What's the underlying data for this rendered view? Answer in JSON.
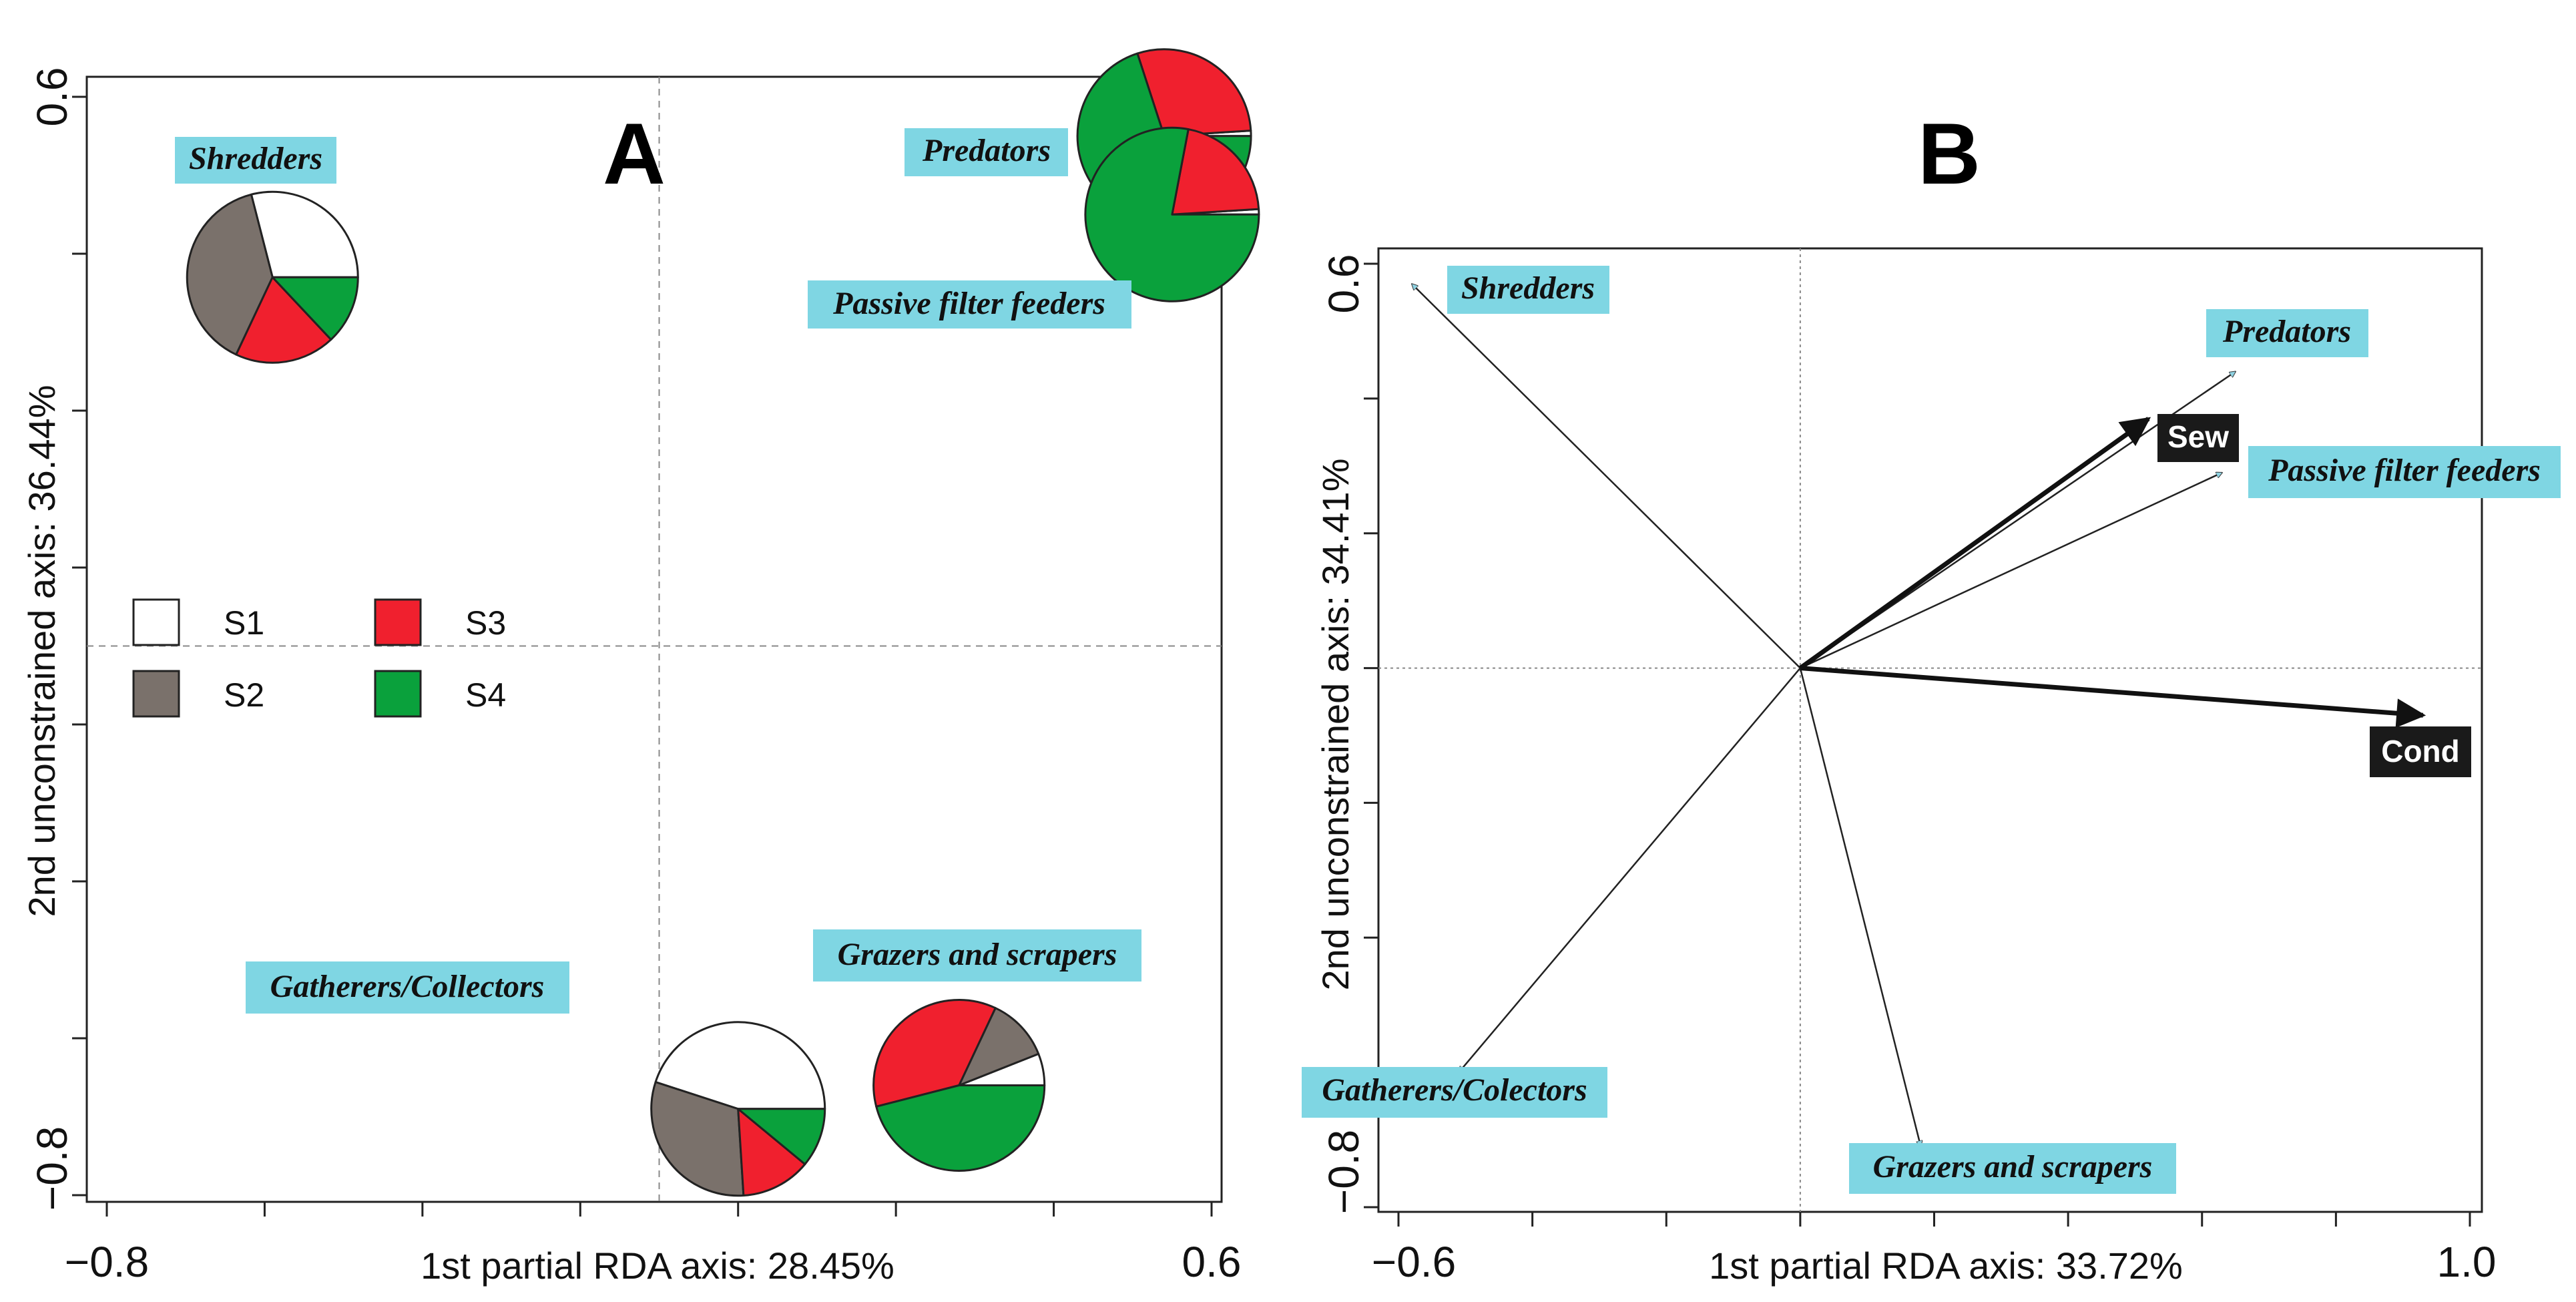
{
  "colors": {
    "S1": "#ffffff",
    "S2": "#7a716b",
    "S3": "#f0202e",
    "S4": "#0aa13c",
    "label_bg": "#7fd6e3",
    "env_bg": "#1a1a1a"
  },
  "chart_data": [
    {
      "panel": "A",
      "type": "scatter",
      "title": "A",
      "xlabel": "1st partial RDA axis: 28.45%",
      "ylabel": "2nd unconstrained axis: 36.44%",
      "xlim": [
        -0.8,
        0.6
      ],
      "ylim": [
        -0.8,
        0.6
      ],
      "x_tick_labels": [
        "−0.8",
        "0.6"
      ],
      "y_tick_labels": [
        "0.6",
        "−0.8"
      ],
      "legend": [
        {
          "key": "S1",
          "label": "S1"
        },
        {
          "key": "S2",
          "label": "S2"
        },
        {
          "key": "S3",
          "label": "S3"
        },
        {
          "key": "S4",
          "label": "S4"
        }
      ],
      "groups": [
        {
          "name": "Shredders",
          "x": -0.59,
          "y": 0.37,
          "shares": {
            "S1": 0.29,
            "S2": 0.39,
            "S3": 0.19,
            "S4": 0.13
          }
        },
        {
          "name": "Predators",
          "x": 0.54,
          "y": 0.55,
          "shares": {
            "S1": 0.01,
            "S2": 0.0,
            "S3": 0.29,
            "S4": 0.7
          }
        },
        {
          "name": "Passive filter feeders",
          "x": 0.55,
          "y": 0.45,
          "shares": {
            "S1": 0.01,
            "S2": 0.0,
            "S3": 0.21,
            "S4": 0.78
          }
        },
        {
          "name": "Gatherers/Collectors",
          "x": 0.0,
          "y": -0.69,
          "shares": {
            "S1": 0.45,
            "S2": 0.31,
            "S3": 0.13,
            "S4": 0.11
          }
        },
        {
          "name": "Grazers and scrapers",
          "x": 0.28,
          "y": -0.66,
          "shares": {
            "S1": 0.06,
            "S2": 0.12,
            "S3": 0.36,
            "S4": 0.46
          }
        }
      ]
    },
    {
      "panel": "B",
      "type": "biplot",
      "title": "B",
      "xlabel": "1st partial RDA axis: 33.72%",
      "ylabel": "2nd unconstrained axis: 34.41%",
      "xlim": [
        -0.6,
        1.0
      ],
      "ylim": [
        -0.8,
        0.6
      ],
      "x_tick_labels": [
        "−0.6",
        "1.0"
      ],
      "y_tick_labels": [
        "0.6",
        "−0.8"
      ],
      "response_arrows": [
        {
          "name": "Shredders",
          "x": -0.58,
          "y": 0.57
        },
        {
          "name": "Predators",
          "x": 0.65,
          "y": 0.44
        },
        {
          "name": "Passive filter feeders",
          "x": 0.63,
          "y": 0.29
        },
        {
          "name": "Gatherers/Colectors",
          "x": -0.51,
          "y": -0.6
        },
        {
          "name": "Grazers and scrapers",
          "x": 0.18,
          "y": -0.71
        }
      ],
      "env_arrows": [
        {
          "name": "Sew",
          "x": 0.52,
          "y": 0.37
        },
        {
          "name": "Cond",
          "x": 0.93,
          "y": -0.07
        }
      ]
    }
  ]
}
